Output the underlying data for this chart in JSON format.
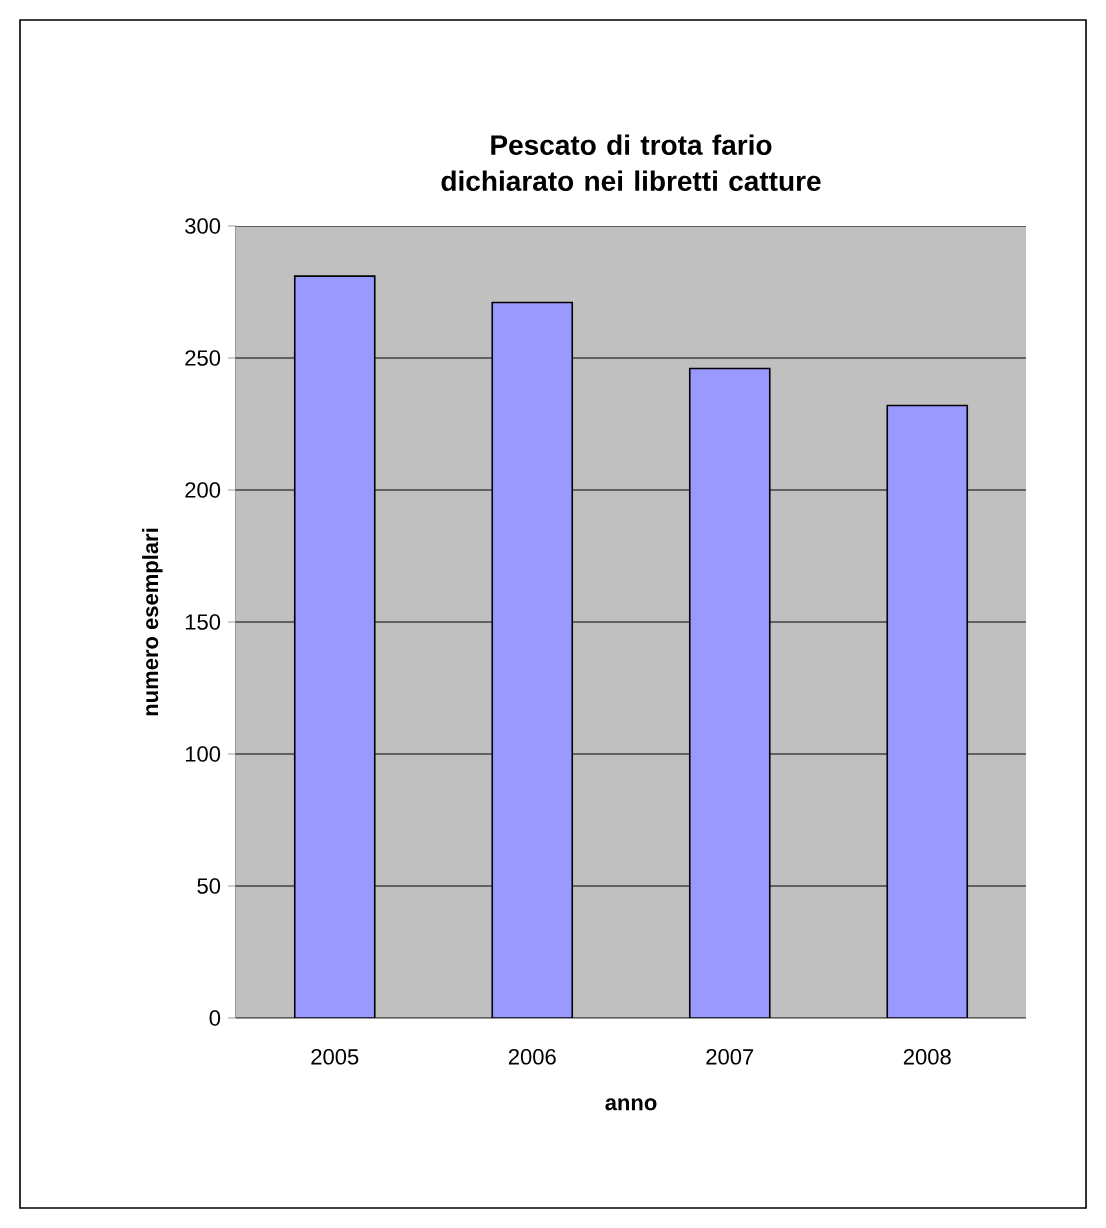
{
  "chart_data": {
    "type": "bar",
    "title": "Pescato di trota fario dichiarato nei libretti catture",
    "xlabel": "anno",
    "ylabel": "numero esemplari",
    "categories": [
      "2005",
      "2006",
      "2007",
      "2008"
    ],
    "values": [
      281,
      271,
      246,
      232
    ],
    "color": "#9999ff",
    "ylim": [
      0,
      300
    ],
    "yticks": [
      0,
      50,
      100,
      150,
      200,
      250,
      300
    ],
    "grid": "y"
  }
}
